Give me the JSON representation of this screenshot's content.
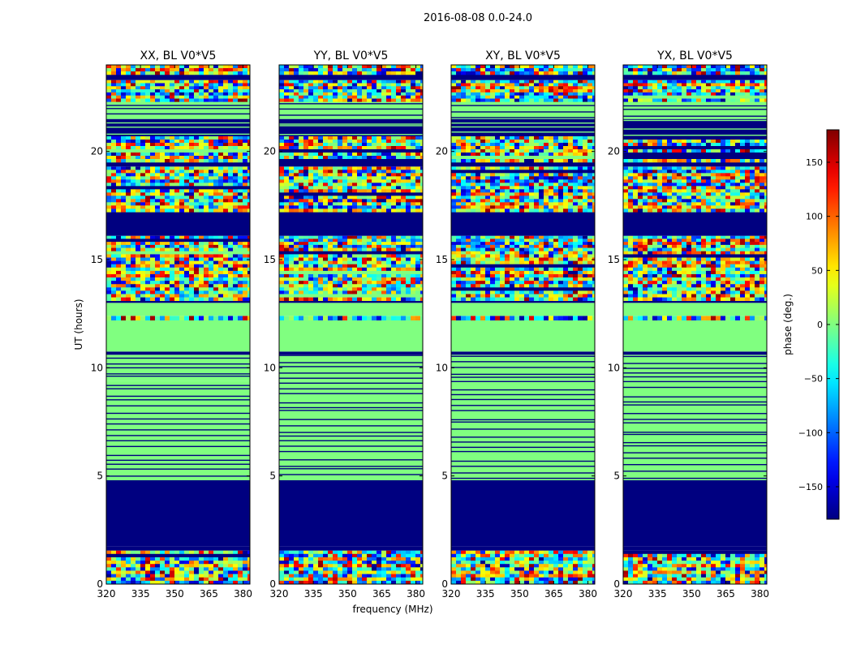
{
  "suptitle": "2016-08-08 0.0-24.0",
  "ylabel": "UT (hours)",
  "xlabel": "frequency (MHz)",
  "colorbar": {
    "label": "phase (deg.)",
    "ticks": [
      150,
      100,
      50,
      0,
      -50,
      -100,
      -150
    ],
    "tick_labels": [
      "150",
      "100",
      "50",
      "0",
      "−50",
      "−100",
      "−150"
    ],
    "range": [
      -180,
      180
    ],
    "colormap": "jet"
  },
  "chart_data": {
    "type": "heatmap",
    "x_range": [
      320,
      383
    ],
    "y_range": [
      0,
      24
    ],
    "x_ticks": [
      320,
      335,
      350,
      365,
      380
    ],
    "x_tick_labels": [
      "320",
      "335",
      "350",
      "365",
      "380"
    ],
    "y_ticks": [
      0,
      5,
      10,
      15,
      20
    ],
    "y_tick_labels": [
      "0",
      "5",
      "10",
      "15",
      "20"
    ],
    "panels": [
      {
        "title": "XX, BL V0*V5"
      },
      {
        "title": "YY, BL V0*V5"
      },
      {
        "title": "XY, BL V0*V5"
      },
      {
        "title": "YX, BL V0*V5"
      }
    ],
    "row_bands": [
      {
        "from": 0.0,
        "to": 1.55,
        "kind": "noise"
      },
      {
        "from": 1.55,
        "to": 1.75,
        "kind": "flag"
      },
      {
        "from": 1.75,
        "to": 4.8,
        "kind": "flag"
      },
      {
        "from": 4.8,
        "to": 5.1,
        "kind": "zero_lines"
      },
      {
        "from": 5.1,
        "to": 9.4,
        "kind": "zero_lines"
      },
      {
        "from": 9.4,
        "to": 10.6,
        "kind": "zero_lines"
      },
      {
        "from": 10.6,
        "to": 10.75,
        "kind": "flag"
      },
      {
        "from": 10.75,
        "to": 12.2,
        "kind": "zero"
      },
      {
        "from": 12.2,
        "to": 12.4,
        "kind": "noise"
      },
      {
        "from": 12.4,
        "to": 13.0,
        "kind": "zero"
      },
      {
        "from": 13.0,
        "to": 13.1,
        "kind": "flag"
      },
      {
        "from": 13.1,
        "to": 15.4,
        "kind": "noise"
      },
      {
        "from": 15.4,
        "to": 16.1,
        "kind": "noise"
      },
      {
        "from": 16.1,
        "to": 17.2,
        "kind": "flag"
      },
      {
        "from": 17.2,
        "to": 19.3,
        "kind": "noise"
      },
      {
        "from": 19.3,
        "to": 19.5,
        "kind": "flag"
      },
      {
        "from": 19.5,
        "to": 20.7,
        "kind": "noise"
      },
      {
        "from": 20.7,
        "to": 21.5,
        "kind": "flag_lines"
      },
      {
        "from": 21.5,
        "to": 22.3,
        "kind": "zero_lines"
      },
      {
        "from": 22.3,
        "to": 23.3,
        "kind": "noise"
      },
      {
        "from": 23.3,
        "to": 23.55,
        "kind": "flag"
      },
      {
        "from": 23.55,
        "to": 24.0,
        "kind": "noise"
      }
    ]
  }
}
